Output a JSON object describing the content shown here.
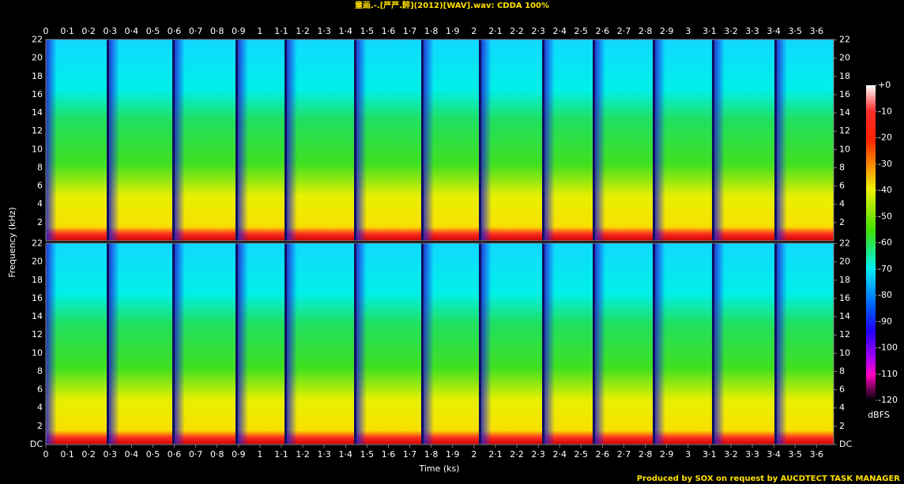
{
  "chart_data": {
    "type": "spectrogram",
    "title": "童画.-.[严严.醉](2012)[WAV].wav: CDDA 100%",
    "x_label": "Time (ks)",
    "y_label": "Frequency (kHz)",
    "xlim": [
      0,
      3.68
    ],
    "xticks": [
      0,
      {
        "value": 0.1,
        "label": "0·1"
      },
      {
        "value": 0.2,
        "label": "0·2"
      },
      {
        "value": 0.3,
        "label": "0·3"
      },
      {
        "value": 0.4,
        "label": "0·4"
      },
      {
        "value": 0.5,
        "label": "0·5"
      },
      {
        "value": 0.6,
        "label": "0·6"
      },
      {
        "value": 0.7,
        "label": "0·7"
      },
      {
        "value": 0.8,
        "label": "0·8"
      },
      {
        "value": 0.9,
        "label": "0·9"
      },
      1,
      {
        "value": 1.1,
        "label": "1·1"
      },
      {
        "value": 1.2,
        "label": "1·2"
      },
      {
        "value": 1.3,
        "label": "1·3"
      },
      {
        "value": 1.4,
        "label": "1·4"
      },
      {
        "value": 1.5,
        "label": "1·5"
      },
      {
        "value": 1.6,
        "label": "1·6"
      },
      {
        "value": 1.7,
        "label": "1·7"
      },
      {
        "value": 1.8,
        "label": "1·8"
      },
      {
        "value": 1.9,
        "label": "1·9"
      },
      2,
      {
        "value": 2.1,
        "label": "2·1"
      },
      {
        "value": 2.2,
        "label": "2·2"
      },
      {
        "value": 2.3,
        "label": "2·3"
      },
      {
        "value": 2.4,
        "label": "2·4"
      },
      {
        "value": 2.5,
        "label": "2·5"
      },
      {
        "value": 2.6,
        "label": "2·6"
      },
      {
        "value": 2.7,
        "label": "2·7"
      },
      {
        "value": 2.8,
        "label": "2·8"
      },
      {
        "value": 2.9,
        "label": "2·9"
      },
      3,
      {
        "value": 3.1,
        "label": "3·1"
      },
      {
        "value": 3.2,
        "label": "3·2"
      },
      {
        "value": 3.3,
        "label": "3·3"
      },
      {
        "value": 3.4,
        "label": "3·4"
      },
      {
        "value": 3.5,
        "label": "3·5"
      },
      {
        "value": 3.6,
        "label": "3·6"
      }
    ],
    "ylim": [
      0,
      22.05
    ],
    "yticks": [
      {
        "value": 0,
        "label": "DC"
      },
      2,
      4,
      6,
      8,
      10,
      12,
      14,
      16,
      18,
      20,
      22
    ],
    "colorbar": {
      "label": "dBFS",
      "lim": [
        -120,
        0
      ],
      "ticks": [
        {
          "value": 0,
          "label": "+0"
        },
        -10,
        -20,
        -30,
        -40,
        -50,
        -60,
        -70,
        -80,
        -90,
        -100,
        -110,
        -120
      ]
    },
    "footer": "Produced by SOX on request by AUCDTECT TASK MANAGER"
  }
}
